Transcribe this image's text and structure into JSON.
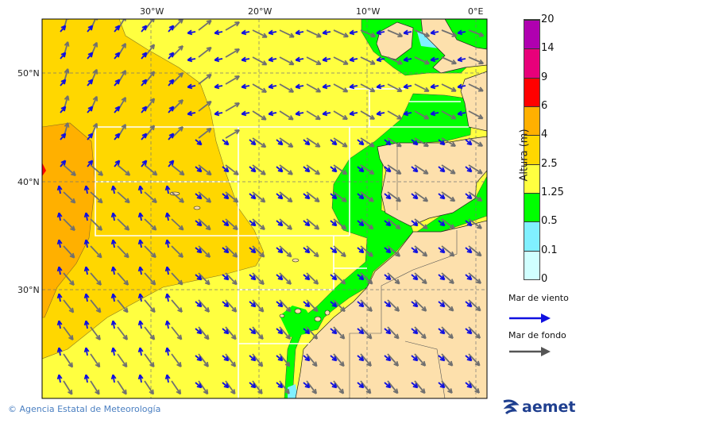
{
  "map": {
    "lon_labels": [
      "30°W",
      "20°W",
      "10°W",
      "0°E"
    ],
    "lat_labels": [
      "50°N",
      "40°N",
      "30°N"
    ],
    "colors": {
      "sea_low": "#ffff40",
      "sea_mid": "#ffd700",
      "sea_high": "#ffb000",
      "coastal": "#00ff00",
      "calm": "#80f0ff",
      "land": "#fde0ac",
      "wind_sea_arrow": "#1010e0",
      "swell_arrow": "#707070"
    }
  },
  "legend": {
    "title": "Altura (m)",
    "ticks": [
      "20",
      "14",
      "9",
      "6",
      "4",
      "2.5",
      "1.25",
      "0.5",
      "0.1",
      "0"
    ],
    "colors": [
      "#b000b0",
      "#e8007a",
      "#ff0000",
      "#ffb000",
      "#ffd700",
      "#ffff40",
      "#00ff00",
      "#80f0ff",
      "#d0ffff"
    ],
    "wind_sea_label": "Mar de viento",
    "swell_label": "Mar de fondo"
  },
  "footer": {
    "copyright": "© Agencia Estatal de Meteorología",
    "logo_text": "aemet"
  }
}
